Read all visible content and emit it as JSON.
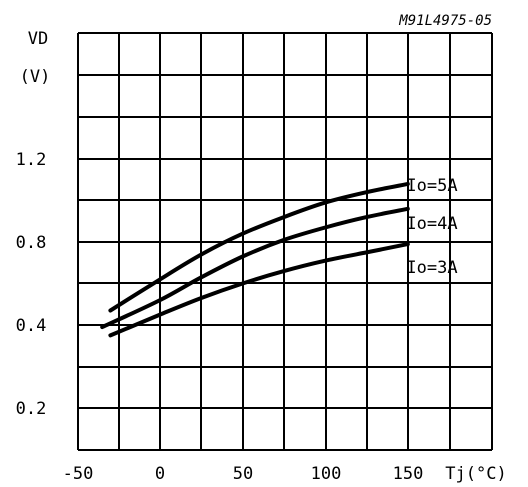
{
  "chart_data": {
    "type": "line",
    "code": "M91L4975-05",
    "ylabel": "VD",
    "yunit": "(V)",
    "xlabel": "Tj(°C)",
    "x_ticks": [
      "-50",
      "0",
      "50",
      "100",
      "150"
    ],
    "y_ticks": [
      {
        "value": 1.2,
        "label": "1.2"
      },
      {
        "value": 0.8,
        "label": "0.8"
      },
      {
        "value": 0.4,
        "label": "0.4"
      },
      {
        "value": 0.2,
        "label": "0.2"
      }
    ],
    "grid": true,
    "series": [
      {
        "name": "Io=5A",
        "x": [
          -30,
          0,
          25,
          50,
          75,
          100,
          125,
          150
        ],
        "y": [
          0.47,
          0.62,
          0.74,
          0.84,
          0.92,
          0.99,
          1.04,
          1.08
        ]
      },
      {
        "name": "Io=4A",
        "x": [
          -35,
          0,
          25,
          50,
          75,
          100,
          125,
          150
        ],
        "y": [
          0.39,
          0.52,
          0.63,
          0.73,
          0.81,
          0.87,
          0.92,
          0.96
        ]
      },
      {
        "name": "Io=3A",
        "x": [
          -30,
          0,
          25,
          50,
          75,
          100,
          125,
          150
        ],
        "y": [
          0.35,
          0.45,
          0.53,
          0.6,
          0.66,
          0.71,
          0.75,
          0.79
        ]
      }
    ],
    "series_labels": [
      "Io=5A",
      "Io=4A",
      "Io=3A"
    ]
  }
}
